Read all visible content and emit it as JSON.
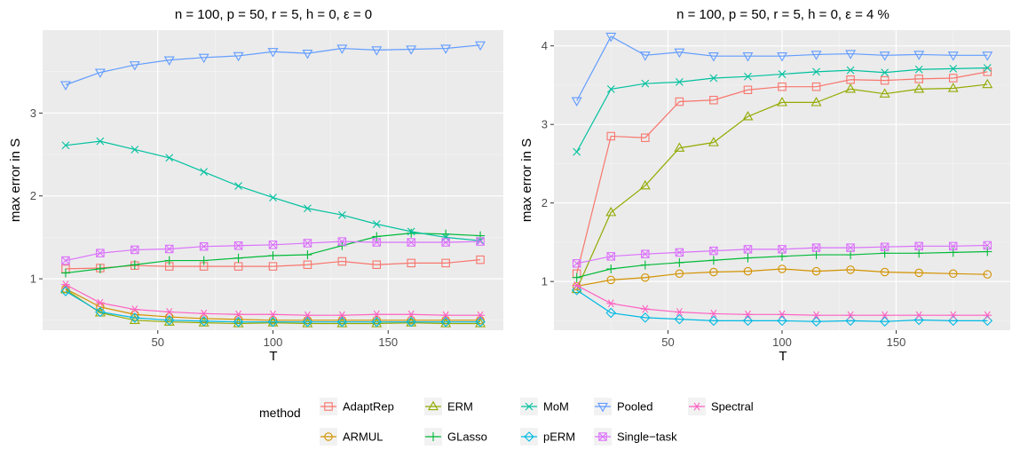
{
  "legend": {
    "title": "method",
    "entries": [
      {
        "name": "AdaptRep",
        "color": "#F8766D",
        "shape": "square-open"
      },
      {
        "name": "ARMUL",
        "color": "#D39200",
        "shape": "circle-open"
      },
      {
        "name": "ERM",
        "color": "#93AA00",
        "shape": "triangle-up-open"
      },
      {
        "name": "GLasso",
        "color": "#00BA38",
        "shape": "plus"
      },
      {
        "name": "MoM",
        "color": "#00C19F",
        "shape": "cross"
      },
      {
        "name": "pERM",
        "color": "#00B9E3",
        "shape": "diamond-open"
      },
      {
        "name": "Pooled",
        "color": "#619CFF",
        "shape": "triangle-down-open"
      },
      {
        "name": "Single−task",
        "color": "#DB72FB",
        "shape": "square-cross"
      },
      {
        "name": "Spectral",
        "color": "#FF61C3",
        "shape": "asterisk"
      }
    ]
  },
  "chart_data": [
    {
      "type": "line",
      "title": "n = 100, p = 50, r = 5, h = 0, ε = 0",
      "xlabel": "T",
      "ylabel": "max error in S",
      "xlim": [
        0,
        200
      ],
      "ylim": [
        0.38,
        4.0
      ],
      "xticks": [
        50,
        100,
        150
      ],
      "yticks": [
        1,
        2,
        3
      ],
      "x": [
        10,
        25,
        40,
        55,
        70,
        85,
        100,
        115,
        130,
        145,
        160,
        175,
        190
      ],
      "series": [
        {
          "name": "AdaptRep",
          "values": [
            1.12,
            1.13,
            1.16,
            1.15,
            1.15,
            1.15,
            1.15,
            1.17,
            1.21,
            1.17,
            1.19,
            1.19,
            1.23
          ]
        },
        {
          "name": "ARMUL",
          "values": [
            0.88,
            0.66,
            0.57,
            0.54,
            0.52,
            0.51,
            0.5,
            0.5,
            0.5,
            0.5,
            0.5,
            0.5,
            0.5
          ]
        },
        {
          "name": "ERM",
          "values": [
            0.87,
            0.59,
            0.5,
            0.48,
            0.47,
            0.46,
            0.47,
            0.46,
            0.46,
            0.46,
            0.47,
            0.46,
            0.46
          ]
        },
        {
          "name": "GLasso",
          "values": [
            1.07,
            1.12,
            1.17,
            1.22,
            1.22,
            1.25,
            1.28,
            1.29,
            1.4,
            1.51,
            1.55,
            1.54,
            1.52
          ]
        },
        {
          "name": "MoM",
          "values": [
            2.61,
            2.66,
            2.56,
            2.46,
            2.29,
            2.12,
            1.98,
            1.85,
            1.77,
            1.66,
            1.57,
            1.5,
            1.46
          ]
        },
        {
          "name": "pERM",
          "values": [
            0.85,
            0.6,
            0.53,
            0.5,
            0.49,
            0.48,
            0.48,
            0.48,
            0.48,
            0.48,
            0.48,
            0.48,
            0.48
          ]
        },
        {
          "name": "Pooled",
          "values": [
            3.34,
            3.49,
            3.58,
            3.64,
            3.67,
            3.69,
            3.74,
            3.72,
            3.78,
            3.76,
            3.77,
            3.78,
            3.82
          ]
        },
        {
          "name": "Single−task",
          "values": [
            1.22,
            1.31,
            1.35,
            1.36,
            1.39,
            1.4,
            1.41,
            1.43,
            1.45,
            1.44,
            1.44,
            1.44,
            1.45
          ]
        },
        {
          "name": "Spectral",
          "values": [
            0.93,
            0.71,
            0.63,
            0.6,
            0.58,
            0.57,
            0.57,
            0.56,
            0.56,
            0.57,
            0.57,
            0.56,
            0.56
          ]
        }
      ]
    },
    {
      "type": "line",
      "title": "n = 100, p = 50, r = 5, h = 0, ε = 4 %",
      "xlabel": "T",
      "ylabel": "max error in S",
      "xlim": [
        0,
        200
      ],
      "ylim": [
        0.38,
        4.2
      ],
      "xticks": [
        50,
        100,
        150
      ],
      "yticks": [
        1,
        2,
        3,
        4
      ],
      "x": [
        10,
        25,
        40,
        55,
        70,
        85,
        100,
        115,
        130,
        145,
        160,
        175,
        190
      ],
      "series": [
        {
          "name": "AdaptRep",
          "values": [
            1.1,
            2.85,
            2.83,
            3.29,
            3.31,
            3.44,
            3.48,
            3.48,
            3.57,
            3.56,
            3.58,
            3.59,
            3.67
          ]
        },
        {
          "name": "ARMUL",
          "values": [
            0.94,
            1.02,
            1.05,
            1.1,
            1.12,
            1.13,
            1.16,
            1.13,
            1.15,
            1.12,
            1.11,
            1.1,
            1.09
          ]
        },
        {
          "name": "ERM",
          "values": [
            0.9,
            1.88,
            2.22,
            2.7,
            2.77,
            3.1,
            3.28,
            3.28,
            3.45,
            3.39,
            3.45,
            3.46,
            3.51
          ]
        },
        {
          "name": "GLasso",
          "values": [
            1.05,
            1.16,
            1.21,
            1.24,
            1.27,
            1.3,
            1.32,
            1.34,
            1.34,
            1.36,
            1.36,
            1.37,
            1.38
          ]
        },
        {
          "name": "MoM",
          "values": [
            2.65,
            3.45,
            3.52,
            3.54,
            3.59,
            3.61,
            3.64,
            3.67,
            3.69,
            3.66,
            3.7,
            3.71,
            3.72
          ]
        },
        {
          "name": "pERM",
          "values": [
            0.89,
            0.6,
            0.54,
            0.52,
            0.5,
            0.5,
            0.5,
            0.49,
            0.5,
            0.49,
            0.51,
            0.5,
            0.5
          ]
        },
        {
          "name": "Pooled",
          "values": [
            3.3,
            4.12,
            3.88,
            3.92,
            3.87,
            3.87,
            3.87,
            3.89,
            3.9,
            3.88,
            3.89,
            3.88,
            3.88
          ]
        },
        {
          "name": "Single−task",
          "values": [
            1.23,
            1.32,
            1.35,
            1.37,
            1.39,
            1.41,
            1.41,
            1.43,
            1.43,
            1.44,
            1.45,
            1.45,
            1.46
          ]
        },
        {
          "name": "Spectral",
          "values": [
            0.95,
            0.72,
            0.65,
            0.61,
            0.59,
            0.58,
            0.58,
            0.57,
            0.57,
            0.57,
            0.57,
            0.57,
            0.57
          ]
        }
      ]
    }
  ]
}
